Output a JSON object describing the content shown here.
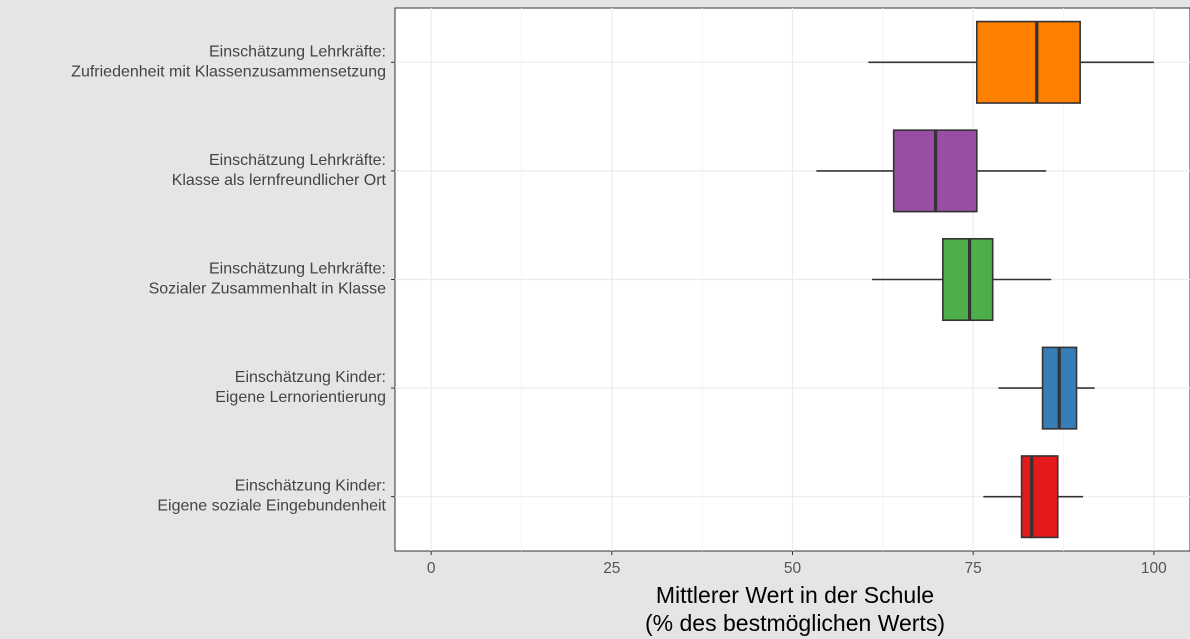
{
  "chart_data": {
    "type": "boxplot",
    "orientation": "horizontal",
    "xlabel_lines": [
      "Mittlerer Wert in der Schule",
      "(% des bestmöglichen Werts)"
    ],
    "xlim": [
      -5,
      105
    ],
    "xticks": [
      0,
      25,
      50,
      75,
      100
    ],
    "grid": true,
    "legend": "none",
    "categories": [
      {
        "label_lines": [
          "Einschätzung Lehrkräfte:",
          "Zufriedenheit mit Klassenzusammensetzung"
        ],
        "color": "#ff7f00",
        "min": 60.5,
        "q1": 75.5,
        "median": 83.8,
        "q3": 89.8,
        "max": 100
      },
      {
        "label_lines": [
          "Einschätzung Lehrkräfte:",
          "Klasse als lernfreundlicher Ort"
        ],
        "color": "#984ea3",
        "min": 53.3,
        "q1": 64.0,
        "median": 69.8,
        "q3": 75.5,
        "max": 85.1
      },
      {
        "label_lines": [
          "Einschätzung Lehrkräfte:",
          "Sozialer Zusammenhalt in Klasse"
        ],
        "color": "#4daf4a",
        "min": 61.0,
        "q1": 70.8,
        "median": 74.5,
        "q3": 77.7,
        "max": 85.8
      },
      {
        "label_lines": [
          "Einschätzung Kinder:",
          "Eigene Lernorientierung"
        ],
        "color": "#377eb8",
        "min": 78.5,
        "q1": 84.6,
        "median": 86.9,
        "q3": 89.3,
        "max": 91.8
      },
      {
        "label_lines": [
          "Einschätzung Kinder:",
          "Eigene soziale Eingebundenheit"
        ],
        "color": "#e41a1c",
        "min": 76.4,
        "q1": 81.7,
        "median": 83.1,
        "q3": 86.7,
        "max": 90.2
      }
    ]
  }
}
